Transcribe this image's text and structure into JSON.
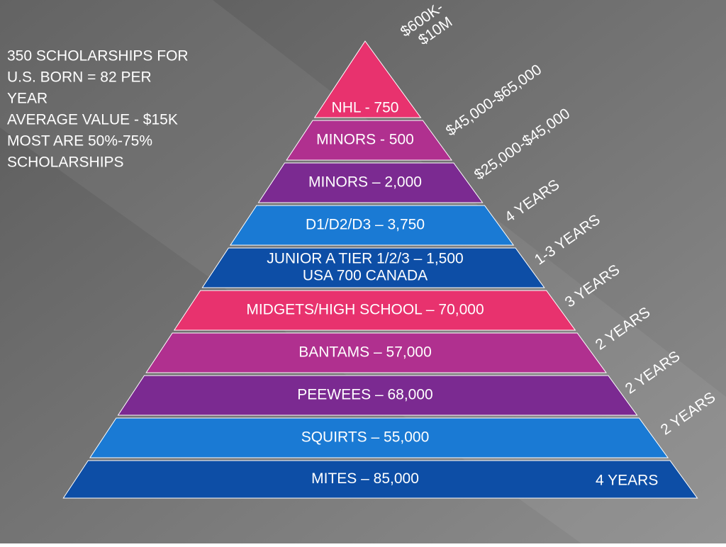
{
  "note": [
    "350 SCHOLARSHIPS FOR",
    "U.S. BORN = 82 PER",
    "YEAR",
    "AVERAGE VALUE - $15K",
    "MOST ARE 50%-75%",
    "SCHOLARSHIPS"
  ],
  "levels": [
    {
      "lines": [
        "NHL - 750"
      ]
    },
    {
      "lines": [
        "MINORS - 500"
      ]
    },
    {
      "lines": [
        "MINORS – 2,000"
      ]
    },
    {
      "lines": [
        "D1/D2/D3 – 3,750"
      ]
    },
    {
      "lines": [
        "JUNIOR A TIER 1/2/3 – 1,500",
        "USA 700 CANADA"
      ]
    },
    {
      "lines": [
        "MIDGETS/HIGH SCHOOL – 70,000"
      ]
    },
    {
      "lines": [
        "BANTAMS – 57,000"
      ]
    },
    {
      "lines": [
        "PEEWEES – 68,000"
      ]
    },
    {
      "lines": [
        "SQUIRTS – 55,000"
      ]
    },
    {
      "lines": [
        "MITES – 85,000"
      ]
    }
  ],
  "side_labels": [
    {
      "lines": [
        "$600K-",
        "$10M"
      ]
    },
    {
      "lines": [
        "$45,000-$65,000"
      ]
    },
    {
      "lines": [
        "$25,000-$45,000"
      ]
    },
    {
      "lines": [
        "4 YEARS"
      ]
    },
    {
      "lines": [
        "1-3 YEARS"
      ]
    },
    {
      "lines": [
        "3 YEARS"
      ]
    },
    {
      "lines": [
        "2 YEARS"
      ]
    },
    {
      "lines": [
        "2 YEARS"
      ]
    },
    {
      "lines": [
        "2 YEARS"
      ]
    },
    {
      "lines": [
        "4 YEARS"
      ]
    }
  ]
}
